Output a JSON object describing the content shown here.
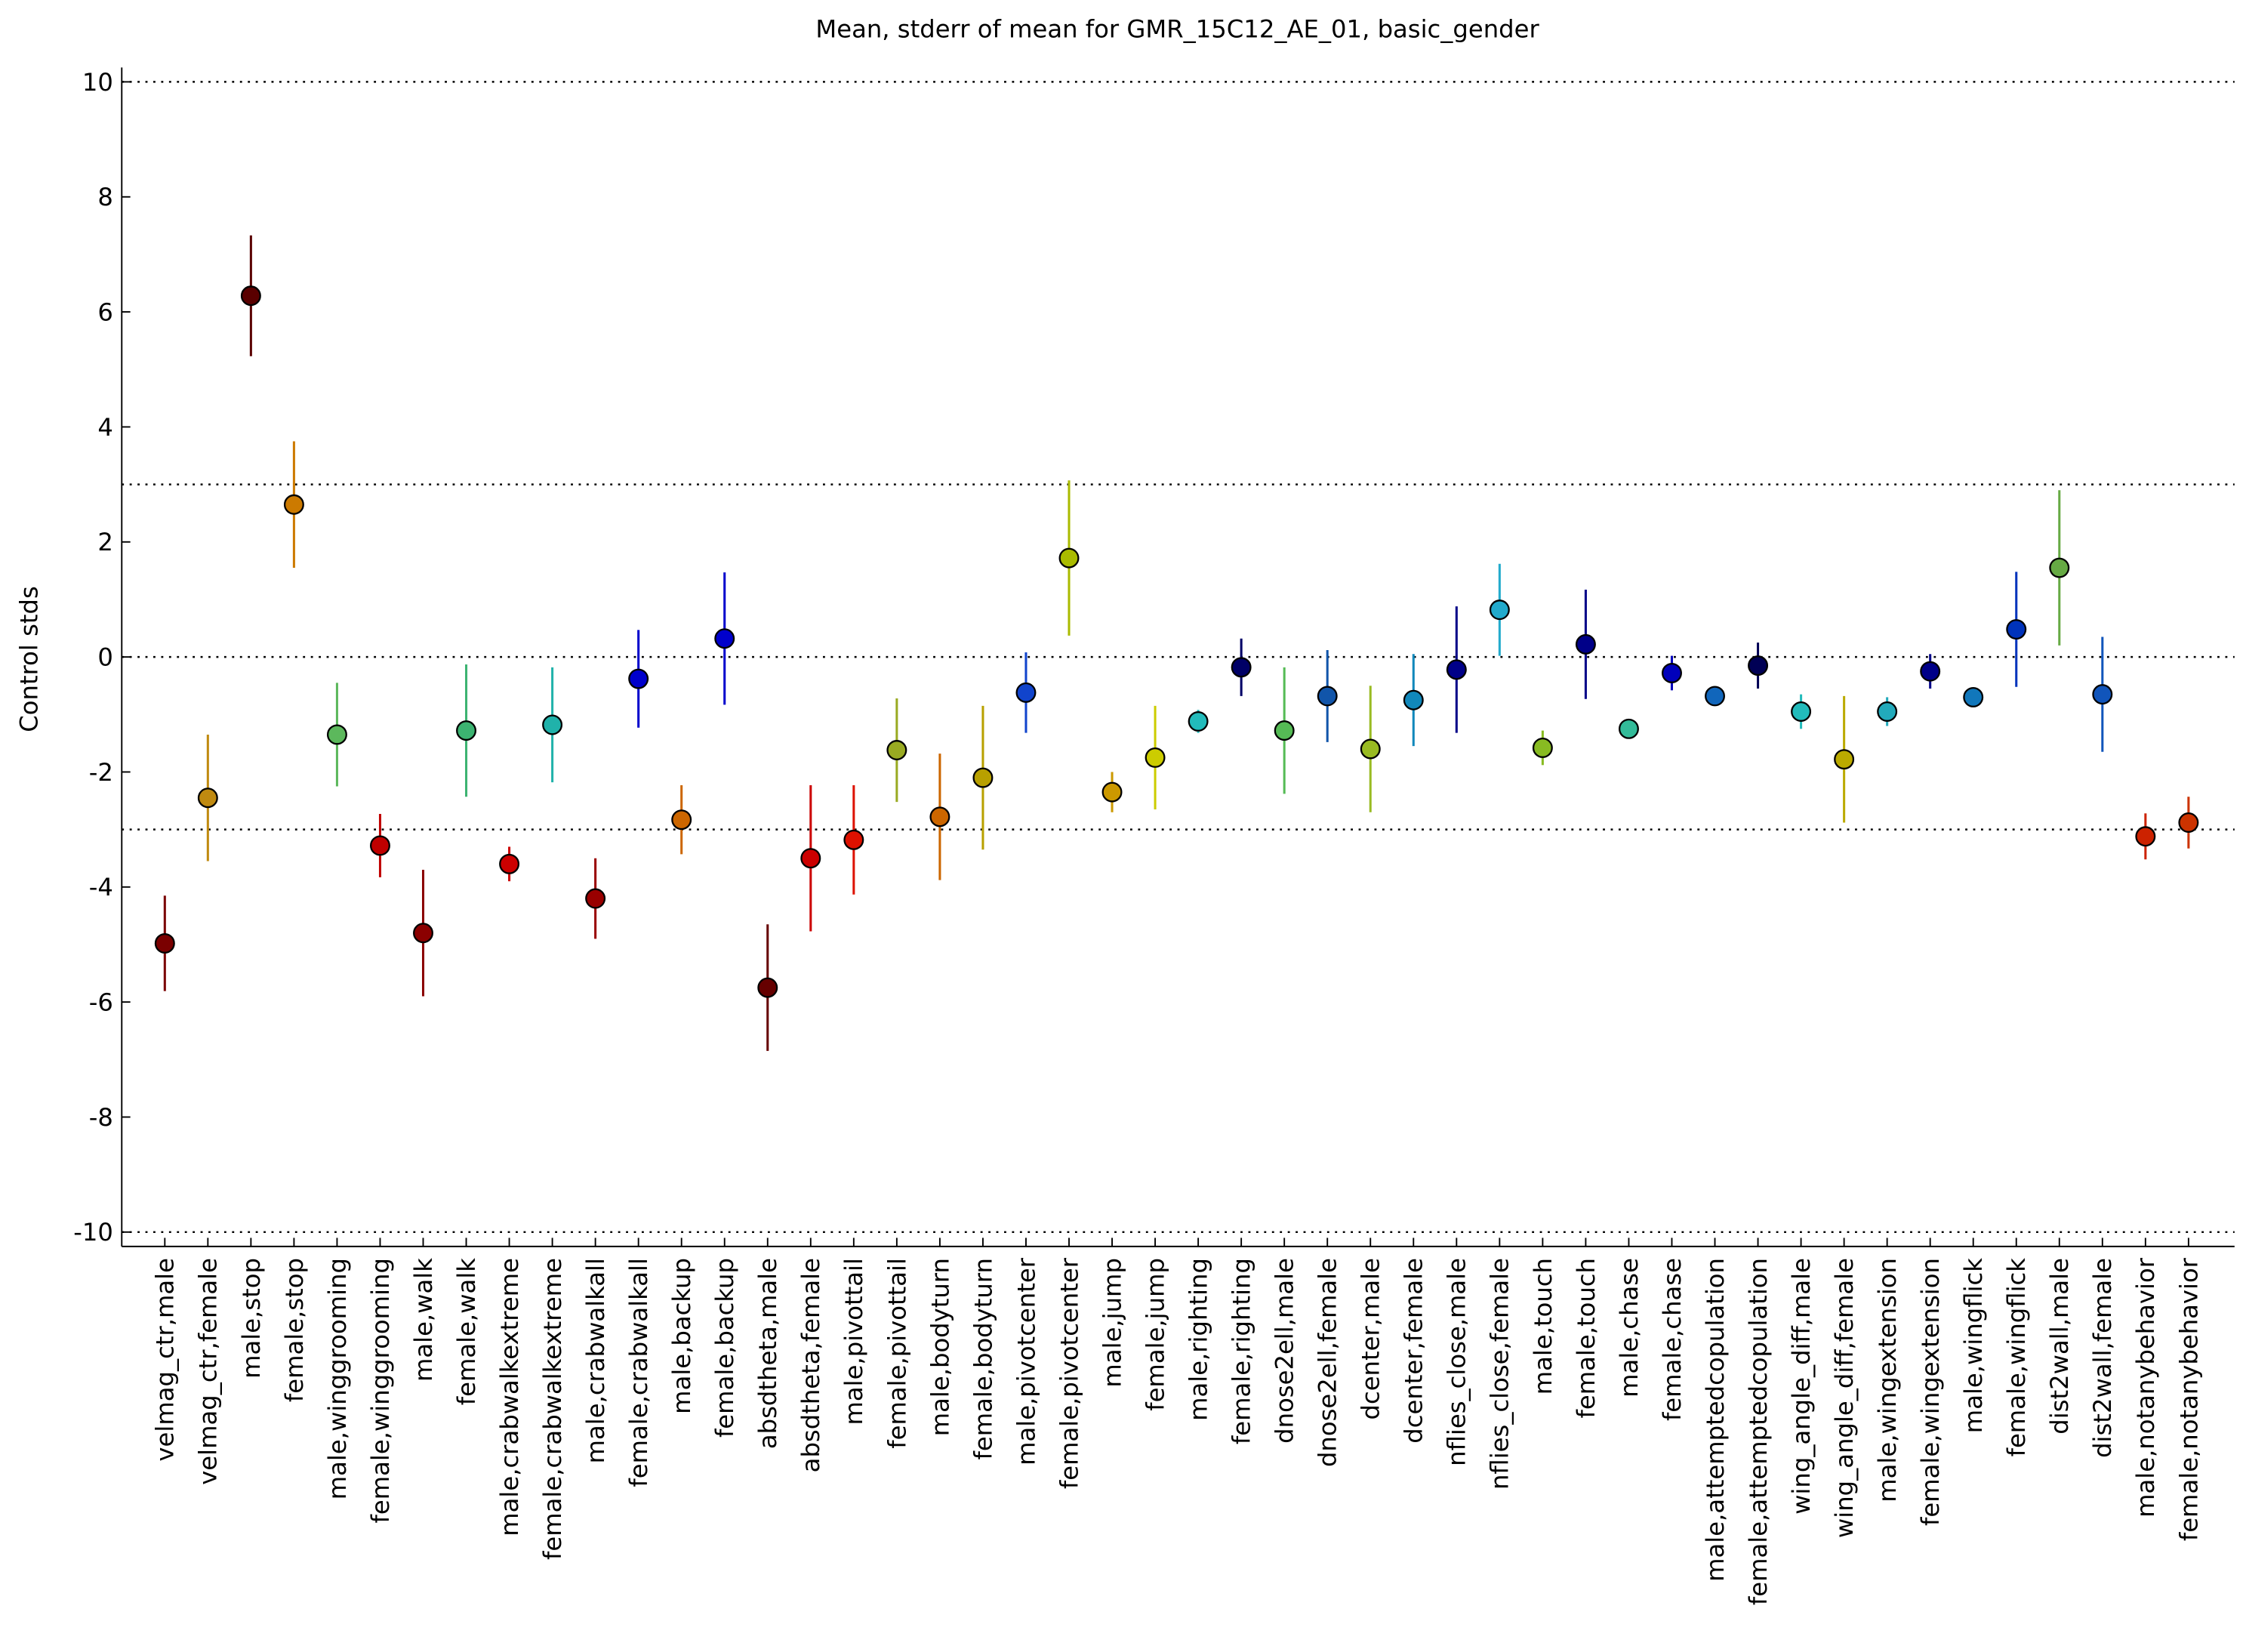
{
  "chart_data": {
    "type": "errorbar",
    "title": "Mean, stderr of mean for GMR_15C12_AE_01, basic_gender",
    "ylabel": "Control stds",
    "categories": [
      "velmag_ctr,male",
      "velmag_ctr,female",
      "male,stop",
      "female,stop",
      "male,winggrooming",
      "female,winggrooming",
      "male,walk",
      "female,walk",
      "male,crabwalkextreme",
      "female,crabwalkextreme",
      "male,crabwalkall",
      "female,crabwalkall",
      "male,backup",
      "female,backup",
      "absdtheta,male",
      "absdtheta,female",
      "male,pivottail",
      "female,pivottail",
      "male,bodyturn",
      "female,bodyturn",
      "male,pivotcenter",
      "female,pivotcenter",
      "male,jump",
      "female,jump",
      "male,righting",
      "female,righting",
      "dnose2ell,male",
      "dnose2ell,female",
      "dcenter,male",
      "dcenter,female",
      "nflies_close,male",
      "nflies_close,female",
      "male,touch",
      "female,touch",
      "male,chase",
      "female,chase",
      "male,attemptedcopulation",
      "female,attemptedcopulation",
      "wing_angle_diff,male",
      "wing_angle_diff,female",
      "male,wingextension",
      "female,wingextension",
      "male,wingflick",
      "female,wingflick",
      "dist2wall,male",
      "dist2wall,female",
      "male,notanybehavior",
      "female,notanybehavior"
    ],
    "values": [
      -4.98,
      -2.45,
      6.28,
      2.65,
      -1.35,
      -3.28,
      -4.8,
      -1.28,
      -3.6,
      -1.18,
      -4.2,
      -0.38,
      -2.83,
      0.32,
      -5.75,
      -3.5,
      -3.18,
      -1.62,
      -2.78,
      -2.1,
      -0.62,
      1.72,
      -2.35,
      -1.75,
      -1.12,
      -0.18,
      -1.28,
      -0.68,
      -1.6,
      -0.75,
      -0.22,
      0.82,
      -1.58,
      0.22,
      -1.25,
      -0.28,
      -0.68,
      -0.15,
      -0.95,
      -1.78,
      -0.95,
      -0.25,
      -0.7,
      0.48,
      1.55,
      -0.65,
      -3.12,
      -2.88
    ],
    "errors": [
      0.83,
      1.1,
      1.05,
      1.1,
      0.9,
      0.55,
      1.1,
      1.15,
      0.3,
      1.0,
      0.7,
      0.85,
      0.6,
      1.15,
      1.1,
      1.27,
      0.95,
      0.9,
      1.1,
      1.25,
      0.7,
      1.35,
      0.35,
      0.9,
      0.2,
      0.5,
      1.1,
      0.8,
      1.1,
      0.8,
      1.1,
      0.8,
      0.3,
      0.95,
      0.15,
      0.3,
      0.15,
      0.4,
      0.3,
      1.1,
      0.25,
      0.3,
      0.1,
      1.0,
      1.35,
      1.0,
      0.4,
      0.45
    ],
    "colors": [
      "#7a0000",
      "#c08a10",
      "#5a0000",
      "#cc7a00",
      "#5cb85c",
      "#c00000",
      "#8b0000",
      "#3cb371",
      "#cc0000",
      "#20b2aa",
      "#990000",
      "#0000cc",
      "#cc6600",
      "#0000cc",
      "#660000",
      "#cc0000",
      "#dd1100",
      "#99aa22",
      "#cc6600",
      "#b8a000",
      "#1144cc",
      "#aabb00",
      "#cc9900",
      "#cccc00",
      "#22bbbb",
      "#000066",
      "#55bb55",
      "#1155aa",
      "#99bb22",
      "#1188bb",
      "#000088",
      "#22aacc",
      "#88bb22",
      "#000088",
      "#33bb99",
      "#0000bb",
      "#1166bb",
      "#000055",
      "#22bbbb",
      "#bbaa00",
      "#22aabb",
      "#000088",
      "#1177bb",
      "#0033bb",
      "#66aa44",
      "#1155bb",
      "#cc2200",
      "#cc3300"
    ],
    "ylim": [
      -10.25,
      10.25
    ],
    "yticks": [
      -10,
      -8,
      -6,
      -4,
      -2,
      0,
      2,
      4,
      6,
      8,
      10
    ],
    "hlines": [
      10,
      3,
      0,
      -3,
      -10
    ]
  }
}
